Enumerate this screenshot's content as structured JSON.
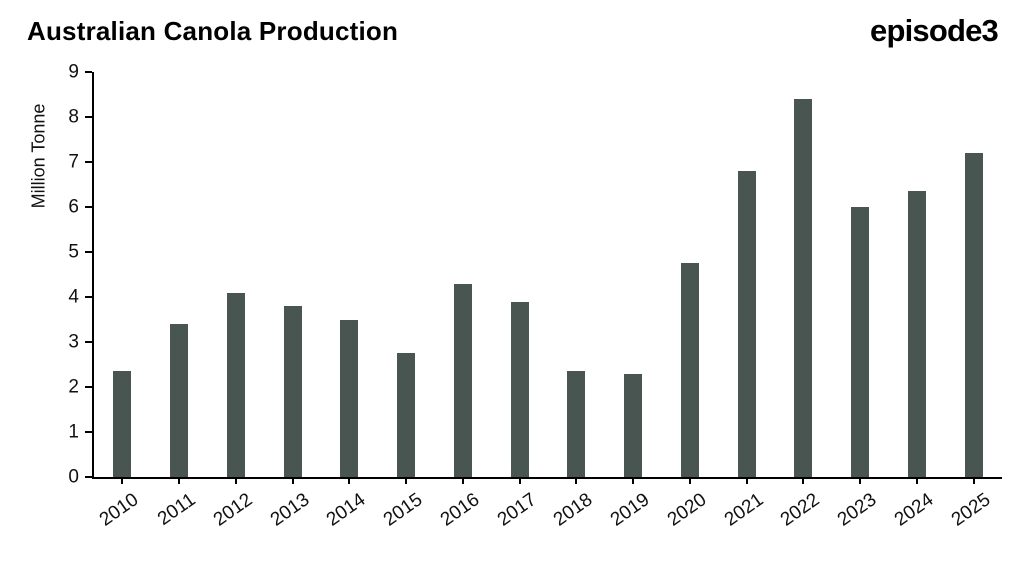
{
  "header": {
    "title": "Australian Canola Production",
    "logo": "episode3"
  },
  "chart_data": {
    "type": "bar",
    "title": "Australian Canola Production",
    "xlabel": "",
    "ylabel": "Million Tonne",
    "categories": [
      "2010",
      "2011",
      "2012",
      "2013",
      "2014",
      "2015",
      "2016",
      "2017",
      "2018",
      "2019",
      "2020",
      "2021",
      "2022",
      "2023",
      "2024",
      "2025"
    ],
    "values": [
      2.35,
      3.4,
      4.1,
      3.8,
      3.5,
      2.75,
      4.3,
      3.9,
      2.35,
      2.3,
      4.75,
      6.8,
      8.4,
      6.0,
      6.35,
      7.2
    ],
    "ylim": [
      0,
      9
    ],
    "ytick_step": 1,
    "bar_color": "#495551",
    "grid": false,
    "legend": false,
    "axis_color": "#000000"
  }
}
